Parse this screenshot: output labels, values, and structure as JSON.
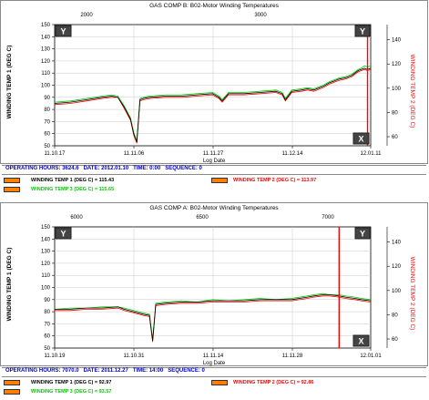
{
  "panels": [
    {
      "id": "b",
      "title": "GAS COMP B: B02-Motor Winding Temperatures",
      "top_axis_ticks": [
        "2000",
        "3000"
      ],
      "left_axis_label": "WINDING TEMP 1 (DEG C)",
      "right_axis_label": "WINDING TEMP 2 (DEG C)",
      "x_axis_label": "Log Date",
      "x_ticks": [
        "11.10.17",
        "11.11.06",
        "11.11.27",
        "11.12.14",
        "12.01.11"
      ],
      "left_ticks": [
        "150",
        "140",
        "130",
        "120",
        "110",
        "100",
        "90",
        "80",
        "70",
        "60",
        "50"
      ],
      "right_ticks": [
        "140",
        "120",
        "100",
        "80",
        "60"
      ],
      "y_button": "Y",
      "x_button": "X",
      "info": {
        "operating_hours": "OPERATING HOURS: 3624.6",
        "date": "DATE: 2012.01.10",
        "time": "TIME: 0:00",
        "sequence": "SEQUENCE: 0"
      },
      "legend": {
        "temp1": "WINDING TEMP 1 (DEG C) = 115.43",
        "temp3": "WINDING TEMP 3 (DEG C) = 115.65",
        "temp2": "WINDING TEMP 2 (DEG C) = 113.97"
      },
      "colors": {
        "temp1": "#000000",
        "temp2": "#ff0000",
        "temp3": "#00cc00",
        "cursor": "#ff0000"
      }
    },
    {
      "id": "a",
      "title": "GAS COMP A: B02-Motor Winding Temperatures",
      "top_axis_ticks": [
        "6000",
        "6500",
        "7000"
      ],
      "left_axis_label": "WINDING TEMP 1 (DEG C)",
      "right_axis_label": "WINDING TEMP 2 (DEG C)",
      "x_axis_label": "Log Date",
      "x_ticks": [
        "11.10.19",
        "11.10.31",
        "11.11.14",
        "11.11.28",
        "12.01.01"
      ],
      "left_ticks": [
        "150",
        "140",
        "130",
        "120",
        "110",
        "100",
        "90",
        "80",
        "70",
        "60",
        "50"
      ],
      "right_ticks": [
        "140",
        "120",
        "100",
        "80",
        "60"
      ],
      "y_button": "Y",
      "x_button": "X",
      "info": {
        "operating_hours": "OPERATING HOURS: 7070.0",
        "date": "DATE: 2011.12.27",
        "time": "TIME: 14:00",
        "sequence": "SEQUENCE: 0"
      },
      "legend": {
        "temp1": "WINDING TEMP 1 (DEG C) = 92.97",
        "temp3": "WINDING TEMP 3 (DEG C) = 93.57",
        "temp2": "WINDING TEMP 2 (DEG C) = 92.86"
      },
      "colors": {
        "temp1": "#000000",
        "temp2": "#ff0000",
        "temp3": "#00cc00",
        "cursor": "#ff0000"
      }
    }
  ],
  "chart_data": [
    {
      "type": "line",
      "title": "GAS COMP B: B02-Motor Winding Temperatures",
      "xlabel": "Log Date",
      "ylabel": "WINDING TEMP 1 (DEG C)",
      "y2label": "WINDING TEMP 2 (DEG C)",
      "ylim": [
        50,
        150
      ],
      "y2lim": [
        50,
        150
      ],
      "x_range": [
        0,
        100
      ],
      "grid": true,
      "cursor_x": 99,
      "x": [
        0,
        5,
        10,
        15,
        18,
        20,
        22,
        24,
        25,
        26,
        27,
        28,
        30,
        35,
        40,
        45,
        50,
        52,
        53,
        55,
        60,
        65,
        70,
        72,
        73,
        75,
        78,
        80,
        82,
        85,
        87,
        88,
        90,
        92,
        94,
        95,
        96,
        97,
        98,
        99,
        100
      ],
      "series": [
        {
          "name": "WINDING TEMP 1 (DEG C)",
          "values": [
            85,
            86,
            88,
            90,
            91,
            90,
            82,
            72,
            60,
            53,
            88,
            89,
            90,
            91,
            91,
            92,
            93,
            90,
            87,
            93,
            93,
            94,
            95,
            93,
            88,
            95,
            96,
            97,
            96,
            99,
            102,
            103,
            105,
            106,
            108,
            110,
            112,
            113,
            114,
            113,
            114
          ]
        },
        {
          "name": "WINDING TEMP 2 (DEG C)",
          "values": [
            84,
            85,
            87,
            89,
            90,
            90,
            81,
            71,
            59,
            52,
            87,
            88,
            89,
            90,
            90,
            91,
            92,
            89,
            86,
            92,
            92,
            93,
            94,
            92,
            87,
            94,
            95,
            96,
            95,
            98,
            101,
            102,
            104,
            105,
            107,
            109,
            111,
            112,
            113,
            112,
            113
          ]
        },
        {
          "name": "WINDING TEMP 3 (DEG C)",
          "values": [
            86,
            87,
            89,
            91,
            92,
            91,
            83,
            73,
            61,
            54,
            89,
            90,
            91,
            92,
            92,
            93,
            94,
            91,
            88,
            94,
            94,
            95,
            96,
            94,
            89,
            96,
            97,
            98,
            97,
            100,
            103,
            104,
            106,
            107,
            109,
            111,
            113,
            114,
            116,
            115,
            116
          ]
        }
      ]
    },
    {
      "type": "line",
      "title": "GAS COMP A: B02-Motor Winding Temperatures",
      "xlabel": "Log Date",
      "ylabel": "WINDING TEMP 1 (DEG C)",
      "y2label": "WINDING TEMP 2 (DEG C)",
      "ylim": [
        50,
        150
      ],
      "y2lim": [
        50,
        150
      ],
      "x_range": [
        0,
        100
      ],
      "grid": true,
      "cursor_x": 90,
      "x": [
        0,
        5,
        10,
        15,
        20,
        22,
        25,
        28,
        30,
        31,
        32,
        35,
        40,
        45,
        50,
        55,
        60,
        65,
        70,
        75,
        80,
        82,
        85,
        87,
        90,
        92,
        95,
        97,
        100
      ],
      "series": [
        {
          "name": "WINDING TEMP 1 (DEG C)",
          "values": [
            82,
            82,
            83,
            83,
            84,
            82,
            80,
            78,
            77,
            56,
            86,
            87,
            88,
            88,
            89,
            89,
            89,
            90,
            90,
            90,
            92,
            93,
            94,
            94,
            93,
            92,
            91,
            90,
            89
          ]
        },
        {
          "name": "WINDING TEMP 2 (DEG C)",
          "values": [
            81,
            81,
            82,
            82,
            83,
            81,
            79,
            77,
            76,
            55,
            85,
            86,
            87,
            87,
            88,
            88,
            88,
            89,
            89,
            89,
            91,
            92,
            93,
            93,
            92,
            91,
            90,
            89,
            88
          ]
        },
        {
          "name": "WINDING TEMP 3 (DEG C)",
          "values": [
            82,
            83,
            83,
            84,
            84,
            83,
            81,
            79,
            78,
            57,
            87,
            88,
            89,
            88,
            90,
            89,
            90,
            91,
            90,
            91,
            93,
            94,
            95,
            94,
            94,
            93,
            92,
            91,
            90
          ]
        }
      ]
    }
  ]
}
